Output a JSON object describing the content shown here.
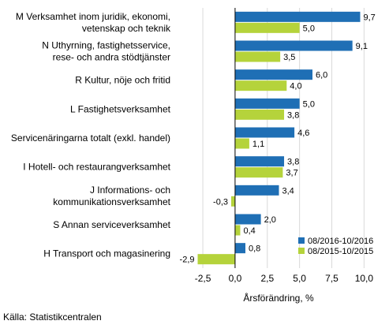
{
  "chart_data": {
    "type": "bar",
    "orientation": "horizontal",
    "categories": [
      [
        "M Verksamhet inom juridik, ekonomi,",
        "vetenskap och teknik"
      ],
      [
        "N Uthyrning, fastighetsservice,",
        "rese- och andra stödtjänster"
      ],
      [
        "R Kultur, nöje och fritid"
      ],
      [
        "L Fastighetsverksamhet"
      ],
      [
        "Servicenäringarna totalt (exkl. handel)"
      ],
      [
        "I Hotell- och restaurangverksamhet"
      ],
      [
        "J Informations- och",
        "kommunikationsverksamhet"
      ],
      [
        "S Annan serviceverksamhet"
      ],
      [
        "H Transport och magasinering"
      ]
    ],
    "series": [
      {
        "name": "08/2016-10/2016",
        "color": "#1f6fb5",
        "values": [
          9.7,
          9.1,
          6.0,
          5.0,
          4.6,
          3.8,
          3.4,
          2.0,
          0.8
        ],
        "labels": [
          "9,7",
          "9,1",
          "6,0",
          "5,0",
          "4,6",
          "3,8",
          "3,4",
          "2,0",
          "0,8"
        ]
      },
      {
        "name": "08/2015-10/2015",
        "color": "#b5d33b",
        "values": [
          5.0,
          3.5,
          4.0,
          3.8,
          1.1,
          3.7,
          -0.3,
          0.4,
          -2.9
        ],
        "labels": [
          "5,0",
          "3,5",
          "4,0",
          "3,8",
          "1,1",
          "3,7",
          "-0,3",
          "0,4",
          "-2,9"
        ]
      }
    ],
    "xlabel": "Årsförändring, %",
    "xlim": [
      -4.4,
      11.2
    ],
    "xticks": [
      -2.5,
      0,
      2.5,
      5,
      7.5,
      10
    ],
    "xtick_labels": [
      "-2,5",
      "0,0",
      "2,5",
      "5,0",
      "7,5",
      "10,0"
    ],
    "grid": "vertical",
    "legend_position": "bottom-right"
  },
  "source": "Källa: Statistikcentralen"
}
